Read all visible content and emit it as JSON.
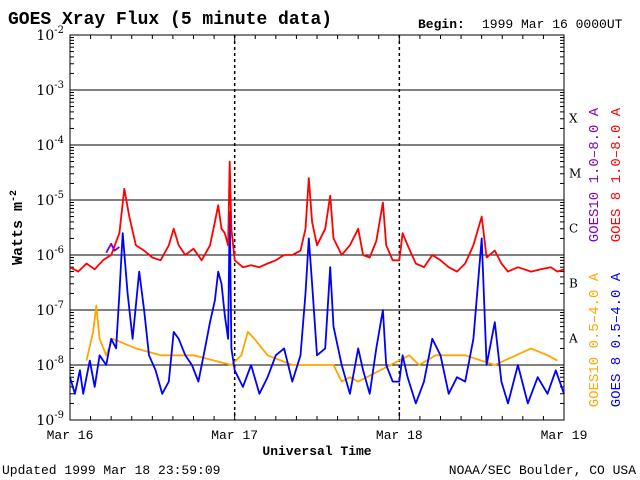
{
  "header": {
    "title": "GOES Xray Flux (5 minute data)",
    "begin_label": "Begin:",
    "begin_value": "1999 Mar 16 0000UT"
  },
  "footer": {
    "updated": "Updated 1999 Mar 18 23:59:09",
    "credit": "NOAA/SEC Boulder, CO USA"
  },
  "colors": {
    "goes8_long": "#ff0000",
    "goes10_long": "#8000c0",
    "goes8_short": "#0000ff",
    "goes10_short": "#ffa500",
    "axis": "#000000"
  },
  "chart_data": {
    "type": "line",
    "title": "GOES Xray Flux (5 minute data)",
    "xlabel": "Universal Time",
    "ylabel": "Watts m",
    "ylabel_exponent": "-2",
    "y_scale": "log",
    "ylim": [
      1e-09,
      0.01
    ],
    "xlim": [
      "1999-03-16 00:00",
      "1999-03-19 00:00"
    ],
    "x_ticks": [
      "Mar 16",
      "Mar 17",
      "Mar 18",
      "Mar 19"
    ],
    "y_ticks": [
      {
        "base": "10",
        "exp": "-9"
      },
      {
        "base": "10",
        "exp": "-8"
      },
      {
        "base": "10",
        "exp": "-7"
      },
      {
        "base": "10",
        "exp": "-6"
      },
      {
        "base": "10",
        "exp": "-5"
      },
      {
        "base": "10",
        "exp": "-4"
      },
      {
        "base": "10",
        "exp": "-3"
      },
      {
        "base": "10",
        "exp": "-2"
      }
    ],
    "flare_classes": [
      "A",
      "B",
      "C",
      "M",
      "X"
    ],
    "grid": true,
    "legend_right": [
      {
        "label": "GOES 8 1.0–8.0 A",
        "color": "#ff0000"
      },
      {
        "label": "GOES10 1.0–8.0 A",
        "color": "#8000c0"
      },
      {
        "label": "GOES 8 0.5–4.0 A",
        "color": "#0000ff"
      },
      {
        "label": "GOES10 0.5–4.0 A",
        "color": "#ffa500"
      }
    ],
    "series": [
      {
        "name": "GOES 8 1.0–8.0 A",
        "color": "#ff0000",
        "points": [
          [
            0.0,
            6e-07
          ],
          [
            0.05,
            5e-07
          ],
          [
            0.1,
            7e-07
          ],
          [
            0.15,
            5.5e-07
          ],
          [
            0.2,
            8e-07
          ],
          [
            0.25,
            1e-06
          ],
          [
            0.3,
            2.5e-06
          ],
          [
            0.33,
            1.6e-05
          ],
          [
            0.36,
            5e-06
          ],
          [
            0.4,
            1.5e-06
          ],
          [
            0.45,
            1.2e-06
          ],
          [
            0.5,
            9e-07
          ],
          [
            0.55,
            8e-07
          ],
          [
            0.6,
            1.5e-06
          ],
          [
            0.63,
            3e-06
          ],
          [
            0.66,
            1.5e-06
          ],
          [
            0.7,
            1e-06
          ],
          [
            0.75,
            1.3e-06
          ],
          [
            0.8,
            8e-07
          ],
          [
            0.85,
            1.5e-06
          ],
          [
            0.88,
            4e-06
          ],
          [
            0.9,
            8e-06
          ],
          [
            0.92,
            3e-06
          ],
          [
            0.94,
            2.5e-06
          ],
          [
            0.96,
            1.5e-06
          ],
          [
            0.97,
            5e-05
          ],
          [
            0.98,
            3e-06
          ],
          [
            1.0,
            8e-07
          ],
          [
            1.05,
            6e-07
          ],
          [
            1.1,
            6.5e-07
          ],
          [
            1.15,
            6e-07
          ],
          [
            1.2,
            7e-07
          ],
          [
            1.25,
            8e-07
          ],
          [
            1.3,
            1e-06
          ],
          [
            1.35,
            1e-06
          ],
          [
            1.4,
            1.2e-06
          ],
          [
            1.43,
            3e-06
          ],
          [
            1.45,
            2.5e-05
          ],
          [
            1.47,
            4e-06
          ],
          [
            1.5,
            1.5e-06
          ],
          [
            1.55,
            3e-06
          ],
          [
            1.58,
            1.2e-05
          ],
          [
            1.6,
            2e-06
          ],
          [
            1.65,
            1e-06
          ],
          [
            1.7,
            1.5e-06
          ],
          [
            1.75,
            3e-06
          ],
          [
            1.78,
            1e-06
          ],
          [
            1.82,
            9e-07
          ],
          [
            1.86,
            1.8e-06
          ],
          [
            1.9,
            9e-06
          ],
          [
            1.92,
            1.5e-06
          ],
          [
            1.96,
            8e-07
          ],
          [
            2.0,
            8e-07
          ],
          [
            2.02,
            2.5e-06
          ],
          [
            2.05,
            1.5e-06
          ],
          [
            2.1,
            7e-07
          ],
          [
            2.15,
            6e-07
          ],
          [
            2.2,
            1e-06
          ],
          [
            2.25,
            8e-07
          ],
          [
            2.3,
            6e-07
          ],
          [
            2.35,
            5e-07
          ],
          [
            2.4,
            7e-07
          ],
          [
            2.45,
            1.5e-06
          ],
          [
            2.5,
            5e-06
          ],
          [
            2.53,
            9e-07
          ],
          [
            2.58,
            1.2e-06
          ],
          [
            2.62,
            7e-07
          ],
          [
            2.66,
            5e-07
          ],
          [
            2.72,
            6e-07
          ],
          [
            2.8,
            5e-07
          ],
          [
            2.86,
            5.5e-07
          ],
          [
            2.92,
            6e-07
          ],
          [
            2.96,
            5e-07
          ],
          [
            3.0,
            5.5e-07
          ]
        ]
      },
      {
        "name": "GOES10 1.0–8.0 A",
        "color": "#8000c0",
        "points": [
          [
            0.22,
            1.1e-06
          ],
          [
            0.25,
            1.6e-06
          ],
          [
            0.27,
            1.2e-06
          ],
          [
            0.3,
            1.4e-06
          ]
        ]
      },
      {
        "name": "GOES 8 0.5–4.0 A",
        "color": "#0000ff",
        "points": [
          [
            0.0,
            6e-09
          ],
          [
            0.03,
            3e-09
          ],
          [
            0.06,
            8e-09
          ],
          [
            0.08,
            3e-09
          ],
          [
            0.12,
            1.2e-08
          ],
          [
            0.15,
            4e-09
          ],
          [
            0.18,
            1.5e-08
          ],
          [
            0.22,
            1e-08
          ],
          [
            0.25,
            3e-08
          ],
          [
            0.28,
            2e-08
          ],
          [
            0.3,
            2e-07
          ],
          [
            0.32,
            2.5e-06
          ],
          [
            0.35,
            2e-07
          ],
          [
            0.38,
            3e-08
          ],
          [
            0.42,
            5e-07
          ],
          [
            0.45,
            1e-07
          ],
          [
            0.48,
            1.5e-08
          ],
          [
            0.52,
            8e-09
          ],
          [
            0.56,
            3e-09
          ],
          [
            0.6,
            5e-09
          ],
          [
            0.63,
            4e-08
          ],
          [
            0.66,
            3e-08
          ],
          [
            0.7,
            1.5e-08
          ],
          [
            0.74,
            1e-08
          ],
          [
            0.78,
            5e-09
          ],
          [
            0.82,
            2e-08
          ],
          [
            0.85,
            6e-08
          ],
          [
            0.88,
            1.5e-07
          ],
          [
            0.9,
            5e-07
          ],
          [
            0.92,
            3e-07
          ],
          [
            0.94,
            8e-08
          ],
          [
            0.96,
            3e-08
          ],
          [
            0.97,
            6e-06
          ],
          [
            0.98,
            2e-08
          ],
          [
            1.0,
            8e-09
          ],
          [
            1.05,
            4e-09
          ],
          [
            1.1,
            1e-08
          ],
          [
            1.15,
            3e-09
          ],
          [
            1.2,
            6e-09
          ],
          [
            1.25,
            1.5e-08
          ],
          [
            1.3,
            2e-08
          ],
          [
            1.35,
            5e-09
          ],
          [
            1.4,
            1.5e-08
          ],
          [
            1.43,
            2e-07
          ],
          [
            1.45,
            2e-06
          ],
          [
            1.47,
            3e-07
          ],
          [
            1.5,
            1.5e-08
          ],
          [
            1.55,
            2e-08
          ],
          [
            1.58,
            6e-07
          ],
          [
            1.6,
            5e-08
          ],
          [
            1.65,
            1e-08
          ],
          [
            1.7,
            3e-09
          ],
          [
            1.75,
            2e-08
          ],
          [
            1.78,
            8e-09
          ],
          [
            1.82,
            3e-09
          ],
          [
            1.86,
            2e-08
          ],
          [
            1.9,
            1e-07
          ],
          [
            1.92,
            1e-08
          ],
          [
            1.96,
            5e-09
          ],
          [
            2.0,
            5e-09
          ],
          [
            2.02,
            1.5e-08
          ],
          [
            2.05,
            6e-09
          ],
          [
            2.1,
            2e-09
          ],
          [
            2.15,
            5e-09
          ],
          [
            2.2,
            3e-08
          ],
          [
            2.25,
            1.5e-08
          ],
          [
            2.3,
            3e-09
          ],
          [
            2.35,
            6e-09
          ],
          [
            2.4,
            5e-09
          ],
          [
            2.45,
            3e-08
          ],
          [
            2.5,
            2e-06
          ],
          [
            2.53,
            1e-08
          ],
          [
            2.58,
            6e-08
          ],
          [
            2.62,
            5e-09
          ],
          [
            2.66,
            2e-09
          ],
          [
            2.72,
            1e-08
          ],
          [
            2.78,
            2e-09
          ],
          [
            2.84,
            6e-09
          ],
          [
            2.9,
            3e-09
          ],
          [
            2.95,
            8e-09
          ],
          [
            3.0,
            3e-09
          ]
        ]
      },
      {
        "name": "GOES10 0.5–4.0 A",
        "color": "#ffa500",
        "points": [
          [
            0.1,
            1.2e-08
          ],
          [
            0.14,
            4e-08
          ],
          [
            0.16,
            1.2e-07
          ],
          [
            0.18,
            3e-08
          ],
          [
            0.22,
            1.5e-08
          ],
          [
            0.26,
            3e-08
          ],
          [
            0.4,
            2e-08
          ],
          [
            0.55,
            1.5e-08
          ],
          [
            0.65,
            1.5e-08
          ],
          [
            0.75,
            1.5e-08
          ],
          [
            0.98,
            1e-08
          ],
          [
            1.04,
            1.5e-08
          ],
          [
            1.08,
            4e-08
          ],
          [
            1.12,
            3e-08
          ],
          [
            1.2,
            1.5e-08
          ],
          [
            1.35,
            1e-08
          ],
          [
            1.6,
            1e-08
          ],
          [
            1.65,
            5e-09
          ],
          [
            1.7,
            6e-09
          ],
          [
            1.75,
            5e-09
          ],
          [
            2.06,
            1.5e-08
          ],
          [
            2.12,
            1e-08
          ],
          [
            2.22,
            1.5e-08
          ],
          [
            2.32,
            1.5e-08
          ],
          [
            2.4,
            1.5e-08
          ],
          [
            2.58,
            1e-08
          ],
          [
            2.8,
            2e-08
          ],
          [
            2.9,
            1.5e-08
          ],
          [
            2.96,
            1.2e-08
          ]
        ]
      }
    ]
  }
}
